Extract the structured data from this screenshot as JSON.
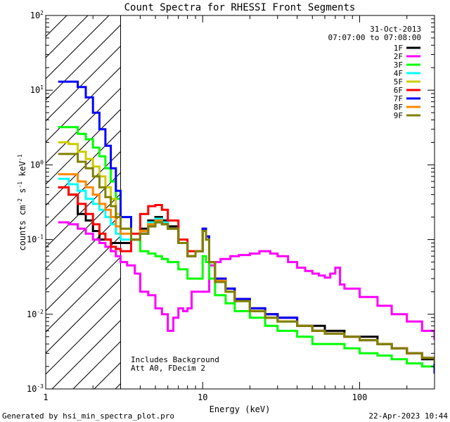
{
  "footer": {
    "generated": "Generated by hsi_min_spectra_plot.pro",
    "date": "22-Apr-2023 10:44"
  },
  "chart_data": {
    "type": "line",
    "title": "Count Spectra for RHESSI Front Segments",
    "xlabel": "Energy (keV)",
    "ylabel": "counts cm",
    "ylabel_sup1": "-2",
    "ylabel_mid": " s",
    "ylabel_sup2": "-1",
    "ylabel_mid2": " keV",
    "ylabel_sup3": "-1",
    "xscale": "log",
    "yscale": "log",
    "xlim": [
      1,
      300
    ],
    "ylim": [
      0.001,
      100
    ],
    "x_ticks": [
      {
        "value": 1,
        "label": "1"
      },
      {
        "value": 10,
        "label": "10"
      },
      {
        "value": 100,
        "label": "100"
      }
    ],
    "y_ticks": [
      {
        "value": 100,
        "base": "10",
        "exp": "2"
      },
      {
        "value": 10,
        "base": "10",
        "exp": "1"
      },
      {
        "value": 1,
        "base": "10",
        "exp": "0"
      },
      {
        "value": 0.1,
        "base": "10",
        "exp": "-1"
      },
      {
        "value": 0.01,
        "base": "10",
        "exp": "-2"
      },
      {
        "value": 0.001,
        "base": "10",
        "exp": "-3"
      }
    ],
    "hatched_region": {
      "x_from": 1,
      "x_to": 3
    },
    "date_label": "31-Oct-2013",
    "time_label": "07:07:00 to 07:08:00",
    "annotation_line1": "Includes Background",
    "annotation_line2": "Att A0, FDecim 2",
    "legend_position": "top-right",
    "series": [
      {
        "name": "1F",
        "color": "#000000",
        "x": [
          1.2,
          1.4,
          1.6,
          1.8,
          2.0,
          2.2,
          2.4,
          2.6,
          2.8,
          3.0,
          3.5,
          4.0,
          4.5,
          5.0,
          5.5,
          6.0,
          7.0,
          8.0,
          9.0,
          10.0,
          10.5,
          11.0,
          12,
          14,
          16,
          20,
          25,
          30,
          40,
          50,
          60,
          80,
          100,
          130,
          160,
          200,
          250,
          300
        ],
        "y": [
          0.5,
          0.4,
          0.22,
          0.18,
          0.13,
          0.1,
          0.1,
          0.09,
          0.09,
          0.09,
          0.1,
          0.14,
          0.18,
          0.2,
          0.18,
          0.15,
          0.09,
          0.06,
          0.07,
          0.14,
          0.11,
          0.05,
          0.03,
          0.022,
          0.016,
          0.012,
          0.01,
          0.009,
          0.007,
          0.007,
          0.006,
          0.005,
          0.005,
          0.004,
          0.0035,
          0.003,
          0.0025,
          0.002
        ]
      },
      {
        "name": "2F",
        "color": "#ff00ff",
        "x": [
          1.2,
          1.4,
          1.6,
          1.8,
          2.0,
          2.2,
          2.4,
          2.6,
          2.8,
          3.0,
          3.3,
          3.7,
          4.0,
          4.5,
          5.0,
          5.5,
          6.0,
          6.5,
          7.0,
          7.5,
          8.0,
          8.5,
          9.0,
          10,
          11,
          12,
          13,
          15,
          17,
          20,
          23,
          27,
          30,
          35,
          40,
          45,
          50,
          55,
          60,
          65,
          70,
          75,
          80,
          100,
          130,
          160,
          200,
          250,
          300
        ],
        "y": [
          0.17,
          0.16,
          0.14,
          0.12,
          0.1,
          0.09,
          0.08,
          0.07,
          0.06,
          0.05,
          0.045,
          0.035,
          0.02,
          0.018,
          0.012,
          0.01,
          0.006,
          0.009,
          0.012,
          0.011,
          0.012,
          0.02,
          0.02,
          0.02,
          0.045,
          0.05,
          0.055,
          0.06,
          0.062,
          0.065,
          0.07,
          0.065,
          0.06,
          0.05,
          0.042,
          0.038,
          0.035,
          0.033,
          0.031,
          0.035,
          0.042,
          0.025,
          0.022,
          0.017,
          0.013,
          0.01,
          0.008,
          0.006,
          0.0045
        ]
      },
      {
        "name": "3F",
        "color": "#00ff00",
        "x": [
          1.2,
          1.4,
          1.6,
          1.8,
          2.0,
          2.2,
          2.4,
          2.6,
          2.8,
          3.0,
          3.5,
          4.0,
          4.5,
          5.0,
          5.5,
          6.0,
          7.0,
          8.0,
          9.0,
          10.0,
          10.5,
          11.0,
          12,
          14,
          16,
          20,
          25,
          30,
          40,
          50,
          60,
          80,
          100,
          130,
          160,
          200,
          250,
          300
        ],
        "y": [
          3.2,
          3.2,
          2.6,
          2.2,
          1.7,
          1.3,
          0.9,
          0.6,
          0.35,
          0.2,
          0.1,
          0.07,
          0.065,
          0.06,
          0.055,
          0.05,
          0.04,
          0.03,
          0.03,
          0.06,
          0.05,
          0.03,
          0.018,
          0.014,
          0.011,
          0.009,
          0.007,
          0.006,
          0.005,
          0.004,
          0.004,
          0.0035,
          0.003,
          0.0028,
          0.0025,
          0.0022,
          0.002,
          0.0018
        ]
      },
      {
        "name": "4F",
        "color": "#00ffff",
        "x": [
          1.2,
          1.4,
          1.6,
          1.8,
          2.0,
          2.2,
          2.4,
          2.6,
          2.8,
          3.0,
          3.5,
          4.0,
          4.5,
          5.0,
          5.5,
          6.0,
          7.0,
          8.0,
          9.0,
          10.0,
          10.5,
          11.0,
          12,
          14,
          16,
          20,
          25,
          30,
          40,
          50,
          60,
          80,
          100,
          130,
          160,
          200,
          250,
          300
        ],
        "y": [
          0.65,
          0.55,
          0.45,
          0.35,
          0.3,
          0.25,
          0.2,
          0.16,
          0.12,
          0.1,
          0.1,
          0.13,
          0.17,
          0.19,
          0.17,
          0.14,
          0.09,
          0.06,
          0.07,
          0.13,
          0.1,
          0.05,
          0.028,
          0.02,
          0.015,
          0.011,
          0.009,
          0.008,
          0.007,
          0.006,
          0.0055,
          0.005,
          0.0045,
          0.004,
          0.0035,
          0.003,
          0.0026,
          0.0022
        ]
      },
      {
        "name": "5F",
        "color": "#cccc00",
        "x": [
          1.2,
          1.4,
          1.6,
          1.8,
          2.0,
          2.2,
          2.4,
          2.6,
          2.8,
          3.0,
          3.5,
          4.0,
          4.5,
          5.0,
          5.5,
          6.0,
          7.0,
          8.0,
          9.0,
          10.0,
          10.5,
          11.0,
          12,
          14,
          16,
          20,
          25,
          30,
          40,
          50,
          60,
          80,
          100,
          130,
          160,
          200,
          250,
          300
        ],
        "y": [
          2.0,
          1.9,
          1.5,
          1.2,
          0.95,
          0.7,
          0.5,
          0.35,
          0.22,
          0.14,
          0.1,
          0.12,
          0.16,
          0.18,
          0.16,
          0.14,
          0.09,
          0.06,
          0.07,
          0.13,
          0.1,
          0.05,
          0.027,
          0.02,
          0.015,
          0.011,
          0.009,
          0.008,
          0.007,
          0.006,
          0.0055,
          0.005,
          0.0045,
          0.004,
          0.0035,
          0.003,
          0.0026,
          0.0022
        ]
      },
      {
        "name": "6F",
        "color": "#ff0000",
        "x": [
          1.2,
          1.4,
          1.6,
          1.8,
          2.0,
          2.2,
          2.4,
          2.6,
          2.8,
          3.0,
          3.5,
          4.0,
          4.5,
          5.0,
          5.5,
          6.0,
          7.0,
          8.0,
          9.0,
          10.0,
          10.5,
          11.0,
          12,
          14,
          16,
          20,
          25,
          30,
          40,
          50,
          60,
          80,
          100,
          130,
          160,
          200,
          250,
          300
        ],
        "y": [
          0.5,
          0.4,
          0.3,
          0.22,
          0.16,
          0.12,
          0.1,
          0.08,
          0.075,
          0.07,
          0.12,
          0.22,
          0.28,
          0.29,
          0.25,
          0.18,
          0.1,
          0.07,
          0.07,
          0.14,
          0.11,
          0.05,
          0.03,
          0.022,
          0.016,
          0.012,
          0.01,
          0.009,
          0.007,
          0.006,
          0.0055,
          0.005,
          0.0045,
          0.004,
          0.0035,
          0.003,
          0.0026,
          0.0022
        ]
      },
      {
        "name": "7F",
        "color": "#0000ff",
        "x": [
          1.2,
          1.4,
          1.6,
          1.8,
          2.0,
          2.2,
          2.4,
          2.6,
          2.8,
          3.0,
          3.5,
          4.0,
          4.5,
          5.0,
          5.5,
          6.0,
          7.0,
          8.0,
          9.0,
          10.0,
          10.5,
          11.0,
          12,
          14,
          16,
          20,
          25,
          30,
          40,
          50,
          60,
          80,
          100,
          130,
          160,
          200,
          250,
          300
        ],
        "y": [
          13,
          13,
          11,
          8,
          5,
          3,
          1.8,
          0.9,
          0.45,
          0.2,
          0.1,
          0.12,
          0.15,
          0.17,
          0.16,
          0.14,
          0.09,
          0.06,
          0.07,
          0.14,
          0.11,
          0.05,
          0.03,
          0.022,
          0.016,
          0.012,
          0.01,
          0.009,
          0.007,
          0.006,
          0.0055,
          0.005,
          0.0045,
          0.004,
          0.0035,
          0.003,
          0.0026,
          0.0016
        ]
      },
      {
        "name": "8F",
        "color": "#ff8800",
        "x": [
          1.2,
          1.4,
          1.6,
          1.8,
          2.0,
          2.2,
          2.4,
          2.6,
          2.8,
          3.0,
          3.5,
          4.0,
          4.5,
          5.0,
          5.5,
          6.0,
          7.0,
          8.0,
          9.0,
          10.0,
          10.5,
          11.0,
          12,
          14,
          16,
          20,
          25,
          30,
          40,
          50,
          60,
          80,
          100,
          130,
          160,
          200,
          250,
          300
        ],
        "y": [
          0.75,
          0.75,
          0.6,
          0.5,
          0.4,
          0.3,
          0.25,
          0.2,
          0.15,
          0.12,
          0.1,
          0.13,
          0.16,
          0.18,
          0.16,
          0.14,
          0.09,
          0.06,
          0.07,
          0.13,
          0.1,
          0.05,
          0.028,
          0.02,
          0.015,
          0.011,
          0.009,
          0.008,
          0.007,
          0.006,
          0.0055,
          0.005,
          0.0045,
          0.004,
          0.0035,
          0.003,
          0.0026,
          0.0022
        ]
      },
      {
        "name": "9F",
        "color": "#808000",
        "x": [
          1.2,
          1.4,
          1.6,
          1.8,
          2.0,
          2.2,
          2.4,
          2.6,
          2.8,
          3.0,
          3.5,
          4.0,
          4.5,
          5.0,
          5.5,
          6.0,
          7.0,
          8.0,
          9.0,
          10.0,
          10.5,
          11.0,
          12,
          14,
          16,
          20,
          25,
          30,
          40,
          50,
          60,
          80,
          100,
          130,
          160,
          200,
          250,
          300
        ],
        "y": [
          1.4,
          1.4,
          1.1,
          0.9,
          0.7,
          0.5,
          0.37,
          0.28,
          0.2,
          0.14,
          0.1,
          0.12,
          0.15,
          0.17,
          0.16,
          0.14,
          0.09,
          0.06,
          0.07,
          0.13,
          0.1,
          0.05,
          0.027,
          0.02,
          0.015,
          0.011,
          0.009,
          0.008,
          0.007,
          0.006,
          0.0055,
          0.005,
          0.0045,
          0.004,
          0.0035,
          0.003,
          0.0026,
          0.0022
        ]
      }
    ]
  }
}
